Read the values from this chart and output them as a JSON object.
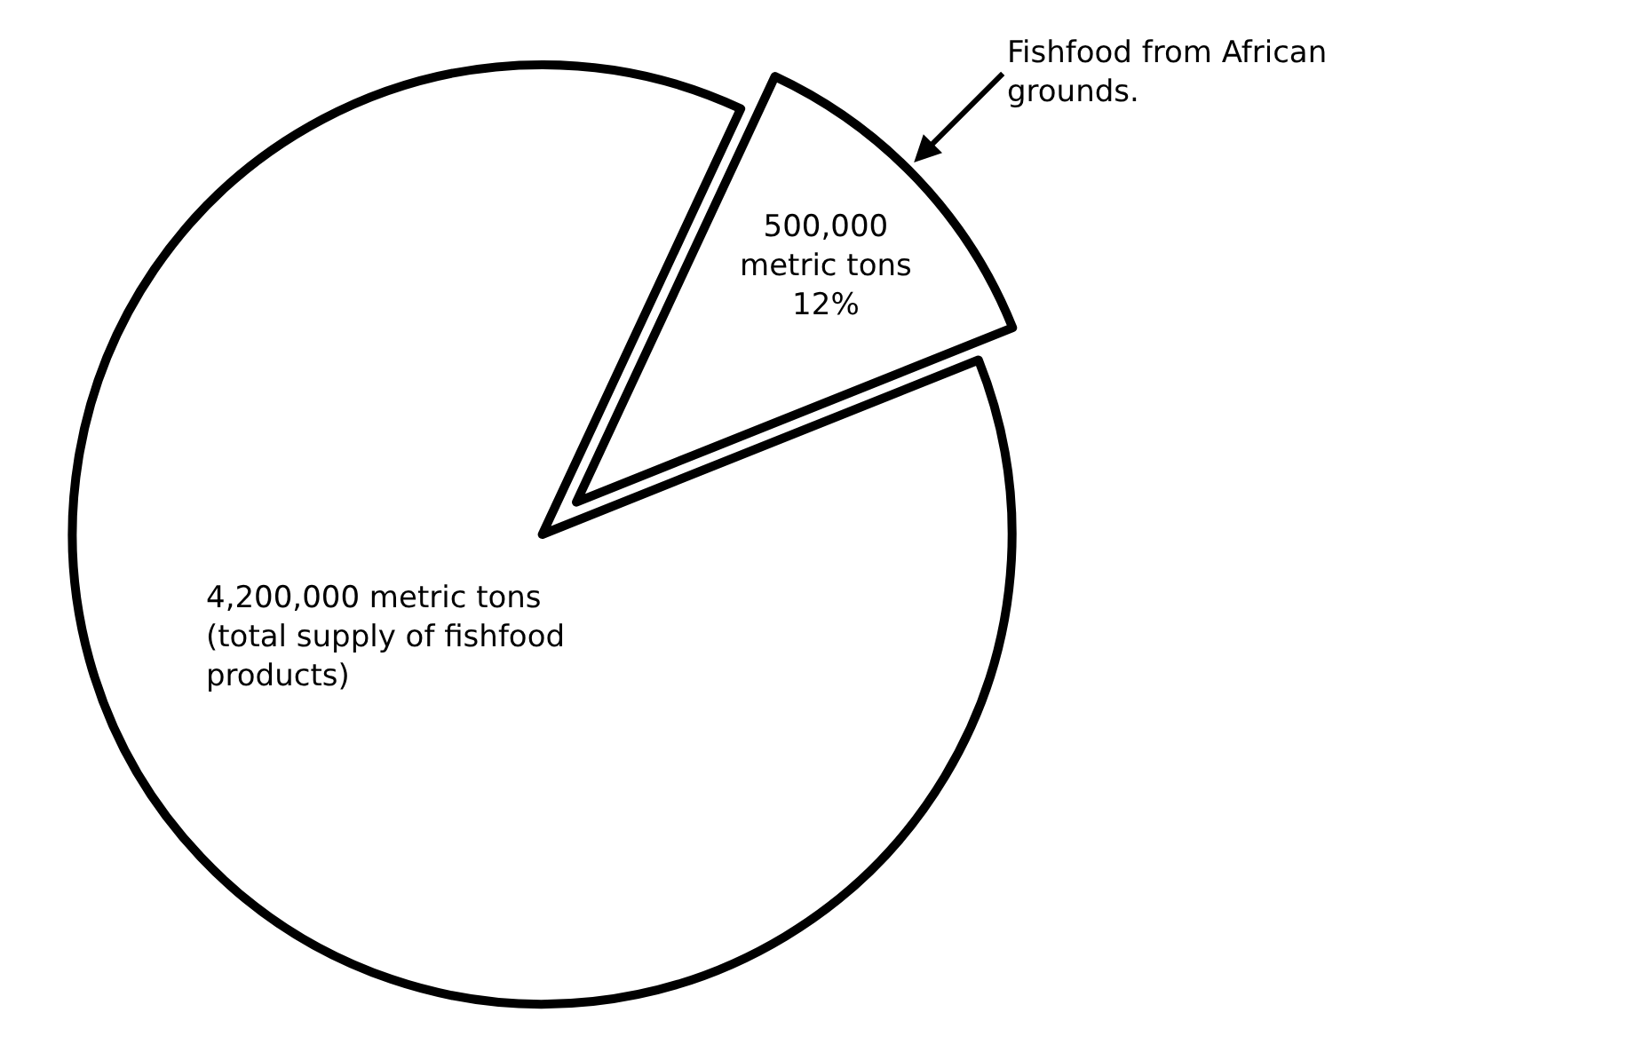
{
  "chart_data": {
    "type": "pie",
    "categories": [
      null,
      null
    ],
    "values": [
      12,
      88
    ],
    "colors": [
      "#ffffff",
      "#ffffff"
    ],
    "value_labels": [
      "500,000\nmetric tons\n12%",
      null
    ],
    "annotations": [
      "Fishfood from African\ngrounds.",
      "4,200,000 metric tons\n(total supply of fishfood\nproducts)"
    ],
    "legend": false
  }
}
